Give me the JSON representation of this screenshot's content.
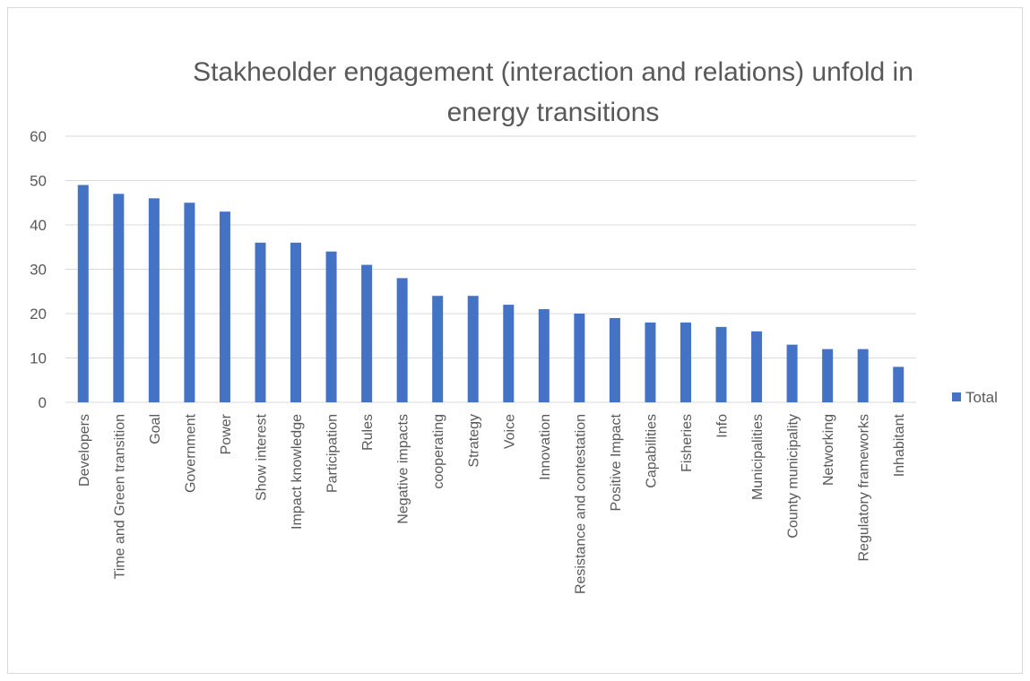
{
  "chart_data": {
    "type": "bar",
    "title": "Stakheolder engagement (interaction and relations) unfold in energy transitions",
    "categories": [
      "Developers",
      "Time and Green transition",
      "Goal",
      "Government",
      "Power",
      "Show interest",
      "Impact knowledge",
      "Participation",
      "Rules",
      "Negative impacts",
      "cooperating",
      "Strategy",
      "Voice",
      "Innovation",
      "Resistance and contestation",
      "Positive Impact",
      "Capabilities",
      "Fisheries",
      "Info",
      "Municipalities",
      "County municipality",
      "Networking",
      "Regulatory frameworks",
      "Inhabitant"
    ],
    "series": [
      {
        "name": "Total",
        "color": "#4472c4",
        "values": [
          49,
          47,
          46,
          45,
          43,
          36,
          36,
          34,
          31,
          28,
          24,
          24,
          22,
          21,
          20,
          19,
          18,
          18,
          17,
          16,
          13,
          12,
          12,
          8
        ]
      }
    ],
    "ylim": [
      0,
      60
    ],
    "yticks": [
      0,
      10,
      20,
      30,
      40,
      50,
      60
    ],
    "grid": true,
    "legend": "right"
  }
}
